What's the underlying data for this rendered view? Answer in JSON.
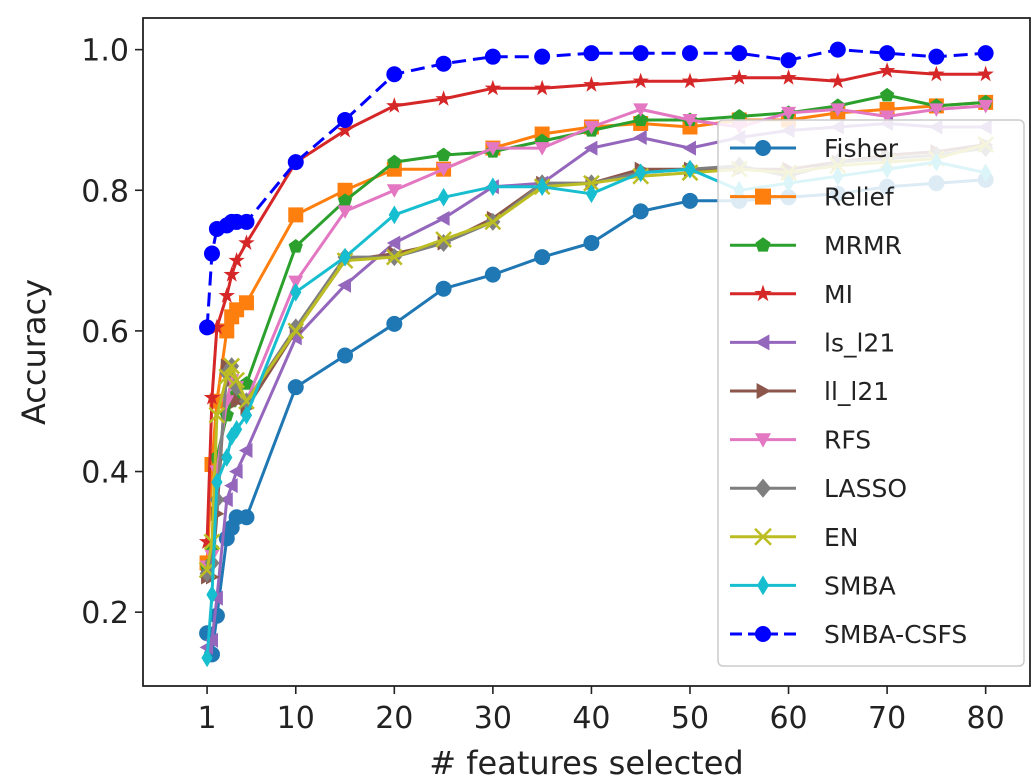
{
  "chart_data": {
    "type": "line",
    "xlabel": "# features selected",
    "ylabel": "Accuracy",
    "x": [
      1,
      1.5,
      2,
      3,
      3.5,
      4,
      5,
      10,
      15,
      20,
      25,
      30,
      35,
      40,
      45,
      50,
      55,
      60,
      65,
      70,
      75,
      80
    ],
    "xlim": [
      -5.5,
      84.5
    ],
    "ylim": [
      0.095,
      1.045
    ],
    "xticks": [
      1,
      10,
      20,
      30,
      40,
      50,
      60,
      70,
      80
    ],
    "xtick_labels": [
      "1",
      "10",
      "20",
      "30",
      "40",
      "50",
      "60",
      "70",
      "80"
    ],
    "yticks": [
      0.2,
      0.4,
      0.6,
      0.8,
      1.0
    ],
    "ytick_labels": [
      "0.2",
      "0.4",
      "0.6",
      "0.8",
      "1.0"
    ],
    "grid": false,
    "legend_position": "right",
    "series": [
      {
        "name": "Fisher",
        "color": "#1f77b4",
        "marker": "circle",
        "dashed": false,
        "values": [
          0.17,
          0.14,
          0.195,
          0.305,
          0.32,
          0.335,
          0.335,
          0.52,
          0.565,
          0.61,
          0.66,
          0.68,
          0.705,
          0.725,
          0.77,
          0.785,
          0.785,
          0.79,
          0.795,
          0.805,
          0.81,
          0.815
        ]
      },
      {
        "name": "Relief",
        "color": "#ff7f0e",
        "marker": "square",
        "dashed": false,
        "values": [
          0.27,
          0.41,
          0.5,
          0.6,
          0.62,
          0.63,
          0.64,
          0.765,
          0.8,
          0.83,
          0.83,
          0.86,
          0.88,
          0.89,
          0.895,
          0.89,
          0.9,
          0.9,
          0.91,
          0.915,
          0.92,
          0.925
        ]
      },
      {
        "name": "MRMR",
        "color": "#2ca02c",
        "marker": "pentagon",
        "dashed": false,
        "values": [
          0.265,
          0.29,
          0.42,
          0.48,
          0.5,
          0.51,
          0.525,
          0.72,
          0.785,
          0.84,
          0.85,
          0.855,
          0.87,
          0.885,
          0.9,
          0.9,
          0.905,
          0.91,
          0.92,
          0.935,
          0.92,
          0.925
        ]
      },
      {
        "name": "MI",
        "color": "#d62728",
        "marker": "star",
        "dashed": false,
        "values": [
          0.3,
          0.505,
          0.605,
          0.65,
          0.68,
          0.7,
          0.725,
          0.84,
          0.885,
          0.92,
          0.93,
          0.945,
          0.945,
          0.95,
          0.955,
          0.955,
          0.96,
          0.96,
          0.955,
          0.97,
          0.965,
          0.965
        ]
      },
      {
        "name": "ls_l21",
        "color": "#9467bd",
        "marker": "triangle-left",
        "dashed": false,
        "values": [
          0.15,
          0.16,
          0.22,
          0.36,
          0.38,
          0.4,
          0.43,
          0.59,
          0.665,
          0.725,
          0.76,
          0.805,
          0.81,
          0.86,
          0.875,
          0.86,
          0.875,
          0.885,
          0.89,
          0.895,
          0.89,
          0.89
        ]
      },
      {
        "name": "ll_l21",
        "color": "#8c564b",
        "marker": "triangle-right",
        "dashed": false,
        "values": [
          0.25,
          0.25,
          0.34,
          0.55,
          0.53,
          0.5,
          0.49,
          0.6,
          0.7,
          0.71,
          0.725,
          0.76,
          0.81,
          0.81,
          0.83,
          0.83,
          0.83,
          0.83,
          0.84,
          0.85,
          0.855,
          0.865
        ]
      },
      {
        "name": "RFS",
        "color": "#e377c2",
        "marker": "triangle-down",
        "dashed": false,
        "values": [
          0.265,
          0.28,
          0.4,
          0.5,
          0.53,
          0.52,
          0.5,
          0.67,
          0.77,
          0.8,
          0.83,
          0.86,
          0.86,
          0.89,
          0.915,
          0.9,
          0.89,
          0.91,
          0.915,
          0.905,
          0.915,
          0.92
        ]
      },
      {
        "name": "LASSO",
        "color": "#7f7f7f",
        "marker": "diamond",
        "dashed": false,
        "values": [
          0.255,
          0.27,
          0.36,
          0.54,
          0.55,
          0.52,
          0.5,
          0.605,
          0.705,
          0.705,
          0.725,
          0.755,
          0.81,
          0.81,
          0.825,
          0.83,
          0.835,
          0.82,
          0.84,
          0.845,
          0.85,
          0.86
        ]
      },
      {
        "name": "EN",
        "color": "#bcbd22",
        "marker": "x",
        "dashed": false,
        "values": [
          0.26,
          0.3,
          0.48,
          0.535,
          0.55,
          0.53,
          0.5,
          0.6,
          0.7,
          0.705,
          0.73,
          0.755,
          0.805,
          0.81,
          0.82,
          0.825,
          0.83,
          0.825,
          0.835,
          0.84,
          0.845,
          0.865
        ]
      },
      {
        "name": "SMBA",
        "color": "#17becf",
        "marker": "thin-diamond",
        "dashed": false,
        "values": [
          0.135,
          0.225,
          0.385,
          0.42,
          0.45,
          0.46,
          0.48,
          0.655,
          0.705,
          0.765,
          0.79,
          0.805,
          0.805,
          0.795,
          0.825,
          0.83,
          0.8,
          0.81,
          0.82,
          0.83,
          0.84,
          0.825
        ]
      },
      {
        "name": "SMBA-CSFS",
        "color": "#0000ff",
        "marker": "circle",
        "dashed": true,
        "values": [
          0.605,
          0.71,
          0.745,
          0.75,
          0.755,
          0.755,
          0.755,
          0.84,
          0.9,
          0.965,
          0.98,
          0.99,
          0.99,
          0.995,
          0.995,
          0.995,
          0.995,
          0.985,
          1.0,
          0.995,
          0.99,
          0.995
        ]
      }
    ]
  }
}
